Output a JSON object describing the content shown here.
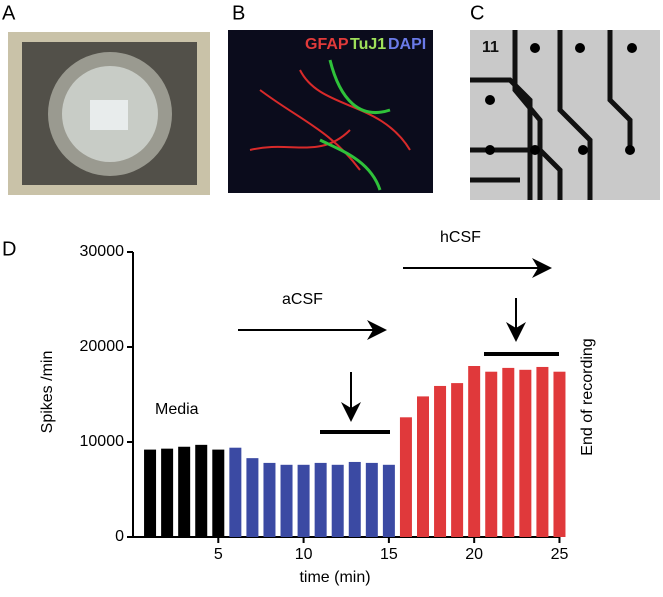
{
  "panels": {
    "a": "A",
    "b": "B",
    "c": "C",
    "d": "D"
  },
  "panel_b_labels": [
    "GFAP",
    "TuJ1",
    "DAPI"
  ],
  "panel_c_label": "11",
  "chart_data": {
    "type": "bar",
    "x": [
      1,
      2,
      3,
      4,
      5,
      6,
      7,
      8,
      9,
      10,
      11,
      12,
      13,
      14,
      15,
      16,
      17,
      18,
      19,
      20,
      21,
      22,
      23,
      24,
      25
    ],
    "values": [
      9200,
      9300,
      9500,
      9700,
      9200,
      9400,
      8300,
      7800,
      7600,
      7600,
      7800,
      7600,
      7900,
      7800,
      7600,
      12600,
      14800,
      15900,
      16200,
      18000,
      17400,
      17800,
      17600,
      17900,
      17400
    ],
    "colors": [
      "#000000",
      "#000000",
      "#000000",
      "#000000",
      "#000000",
      "#3b4aa3",
      "#3b4aa3",
      "#3b4aa3",
      "#3b4aa3",
      "#3b4aa3",
      "#3b4aa3",
      "#3b4aa3",
      "#3b4aa3",
      "#3b4aa3",
      "#3b4aa3",
      "#e0393b",
      "#e0393b",
      "#e0393b",
      "#e0393b",
      "#e0393b",
      "#e0393b",
      "#e0393b",
      "#e0393b",
      "#e0393b",
      "#e0393b"
    ],
    "xlim": [
      0,
      25.5
    ],
    "ylim": [
      0,
      30000
    ],
    "xticks": [
      5,
      10,
      15,
      20,
      25
    ],
    "yticks": [
      0,
      10000,
      20000,
      30000
    ],
    "xlabel": "time (min)",
    "ylabel": "Spikes /min",
    "annotations": [
      "Media",
      "aCSF",
      "hCSF",
      "End of recording"
    ]
  }
}
